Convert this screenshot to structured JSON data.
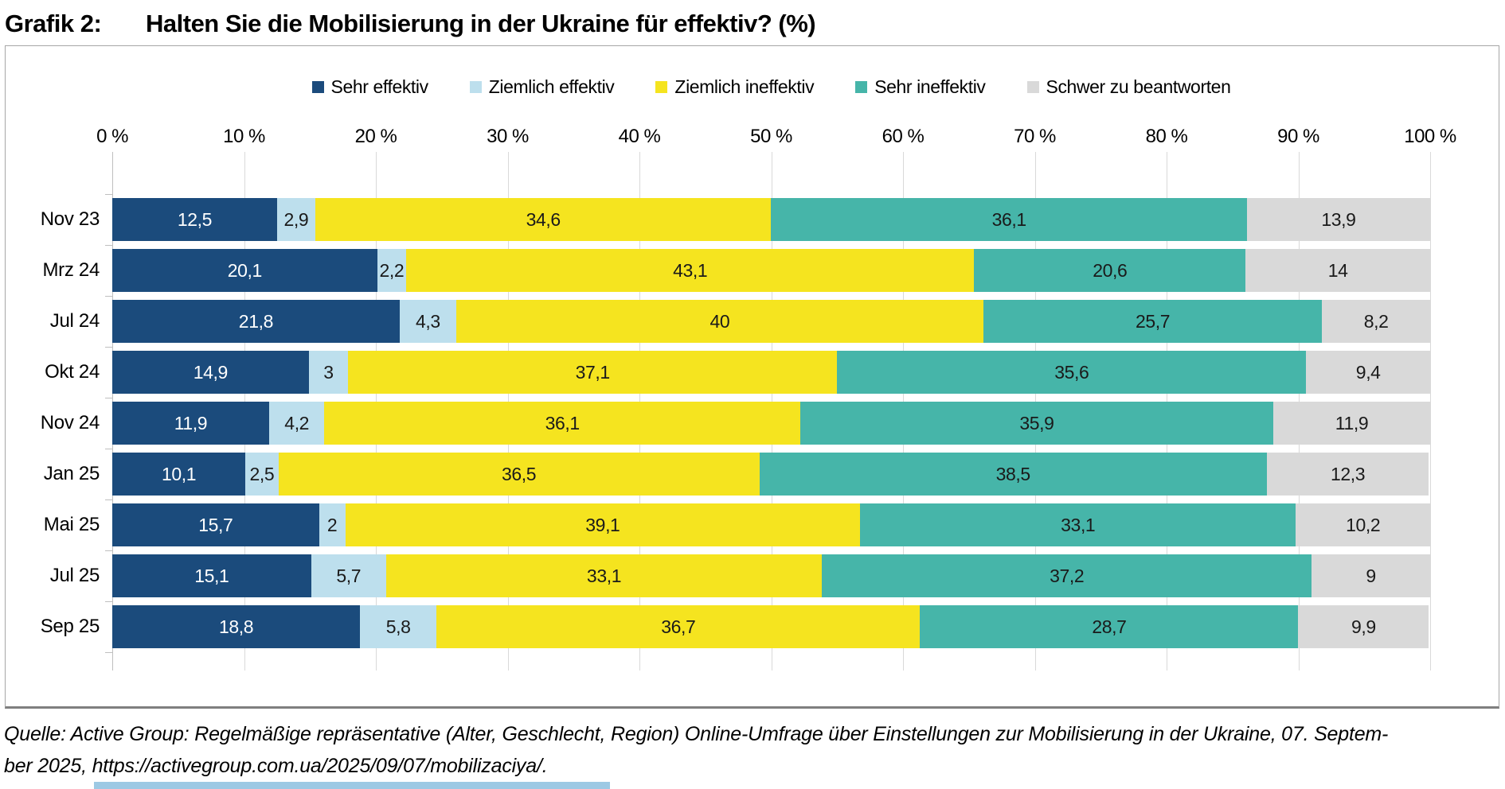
{
  "title": {
    "prefix": "Grafik 2:",
    "text": "Halten Sie die Mobilisierung in der Ukraine für effektiv? (%)"
  },
  "chart_data": {
    "type": "bar",
    "stacked": true,
    "orientation": "horizontal",
    "legend_position": "top",
    "grid": true,
    "categories": [
      "Nov 23",
      "Mrz 24",
      "Jul 24",
      "Okt 24",
      "Nov 24",
      "Jan 25",
      "Mai 25",
      "Jul 25",
      "Sep 25"
    ],
    "series": [
      {
        "name": "Sehr effektiv",
        "color": "#1b4b7c",
        "label_color": "#ffffff",
        "values": [
          12.5,
          20.1,
          21.8,
          14.9,
          11.9,
          10.1,
          15.7,
          15.1,
          18.8
        ],
        "labels": [
          "12,5",
          "20,1",
          "21,8",
          "14,9",
          "11,9",
          "10,1",
          "15,7",
          "15,1",
          "18,8"
        ]
      },
      {
        "name": "Ziemlich effektiv",
        "color": "#bddfed",
        "label_color": "#1a1a1a",
        "values": [
          2.9,
          2.2,
          4.3,
          3,
          4.2,
          2.5,
          2,
          5.7,
          5.8
        ],
        "labels": [
          "2,9",
          "2,2",
          "4,3",
          "3",
          "4,2",
          "2,5",
          "2",
          "5,7",
          "5,8"
        ]
      },
      {
        "name": "Ziemlich ineffektiv",
        "color": "#f5e41f",
        "label_color": "#1a1a1a",
        "values": [
          34.6,
          43.1,
          40,
          37.1,
          36.1,
          36.5,
          39.1,
          33.1,
          36.7
        ],
        "labels": [
          "34,6",
          "43,1",
          "40",
          "37,1",
          "36,1",
          "36,5",
          "39,1",
          "33,1",
          "36,7"
        ]
      },
      {
        "name": "Sehr ineffektiv",
        "color": "#46b5a9",
        "label_color": "#1a1a1a",
        "values": [
          36.1,
          20.6,
          25.7,
          35.6,
          35.9,
          38.5,
          33.1,
          37.2,
          28.7
        ],
        "labels": [
          "36,1",
          "20,6",
          "25,7",
          "35,6",
          "35,9",
          "38,5",
          "33,1",
          "37,2",
          "28,7"
        ]
      },
      {
        "name": "Schwer zu beantworten",
        "color": "#d9d9d9",
        "label_color": "#1a1a1a",
        "values": [
          13.9,
          14,
          8.2,
          9.4,
          11.9,
          12.3,
          10.2,
          9,
          9.9
        ],
        "labels": [
          "13,9",
          "14",
          "8,2",
          "9,4",
          "11,9",
          "12,3",
          "10,2",
          "9",
          "9,9"
        ]
      }
    ],
    "x_axis": {
      "min": 0,
      "max": 100,
      "ticks": [
        "0 %",
        "10 %",
        "20 %",
        "30 %",
        "40 %",
        "50 %",
        "60 %",
        "70 %",
        "80 %",
        "90 %",
        "100 %"
      ]
    }
  },
  "footer": {
    "line1": "Quelle: Active Group: Regelmäßige repräsentative (Alter, Geschlecht, Region) Online-Umfrage über Einstellungen zur Mobilisierung in der Ukraine, 07. Septem-",
    "line2_prefix": "ber 2025, ",
    "line2_url": "https://activegroup.com.ua/2025/09/07/mobilizaciya/."
  }
}
